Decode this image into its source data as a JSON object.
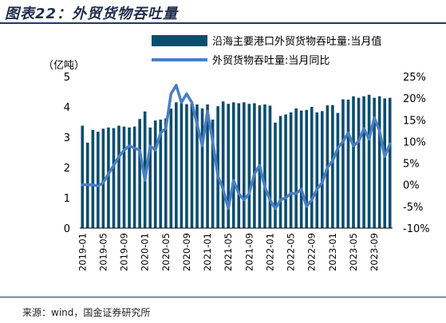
{
  "title": "图表22：外贸货物吞吐量",
  "source": "来源：wind，国金证券研究所",
  "colors": {
    "bar": "#0b4d6e",
    "line": "#4a7ec2",
    "title": "#1f2d4d",
    "rule": "#1b3a6b"
  },
  "chart_data": {
    "type": "bar+line",
    "left_axis_label": "（亿吨）",
    "left_ylim": [
      0,
      5
    ],
    "left_ticks": [
      "0",
      "1",
      "2",
      "3",
      "4",
      "5"
    ],
    "right_ylim": [
      -10,
      25
    ],
    "right_ticks": [
      "-10%",
      "-5%",
      "0%",
      "5%",
      "10%",
      "15%",
      "20%",
      "25%"
    ],
    "x_tick_labels": [
      "2019-01",
      "2019-05",
      "2019-09",
      "2020-01",
      "2020-05",
      "2020-09",
      "2021-01",
      "2021-05",
      "2021-09",
      "2022-01",
      "2022-05",
      "2022-09",
      "2023-01",
      "2023-05",
      "2023-09"
    ],
    "x": [
      "2019-01",
      "2019-02",
      "2019-03",
      "2019-04",
      "2019-05",
      "2019-06",
      "2019-07",
      "2019-08",
      "2019-09",
      "2019-10",
      "2019-11",
      "2019-12",
      "2020-01",
      "2020-02",
      "2020-03",
      "2020-04",
      "2020-05",
      "2020-06",
      "2020-07",
      "2020-08",
      "2020-09",
      "2020-10",
      "2020-11",
      "2020-12",
      "2021-01",
      "2021-02",
      "2021-03",
      "2021-04",
      "2021-05",
      "2021-06",
      "2021-07",
      "2021-08",
      "2021-09",
      "2021-10",
      "2021-11",
      "2021-12",
      "2022-01",
      "2022-02",
      "2022-03",
      "2022-04",
      "2022-05",
      "2022-06",
      "2022-07",
      "2022-08",
      "2022-09",
      "2022-10",
      "2022-11",
      "2022-12",
      "2023-01",
      "2023-02",
      "2023-03",
      "2023-04",
      "2023-05",
      "2023-06",
      "2023-07",
      "2023-08",
      "2023-09",
      "2023-10",
      "2023-11",
      "2023-12"
    ],
    "series": [
      {
        "name": "沿海主要港口外贸货物吞吐量:当月值",
        "type": "bar",
        "axis": "left",
        "values": [
          3.38,
          2.82,
          3.24,
          3.18,
          3.28,
          3.32,
          3.3,
          3.38,
          3.35,
          3.32,
          3.35,
          3.6,
          3.85,
          3.32,
          3.55,
          3.58,
          3.62,
          3.94,
          4.15,
          4.12,
          4.09,
          4.1,
          4.08,
          3.95,
          4.08,
          3.58,
          4.02,
          4.18,
          4.1,
          4.15,
          4.12,
          4.15,
          4.1,
          4.12,
          4.05,
          4.08,
          4.04,
          3.48,
          3.7,
          3.75,
          3.82,
          3.95,
          3.88,
          3.9,
          4.0,
          3.82,
          3.86,
          4.05,
          4.06,
          3.8,
          4.25,
          4.24,
          4.35,
          4.3,
          4.35,
          4.4,
          4.3,
          4.35,
          4.28,
          4.3
        ]
      },
      {
        "name": "外贸货物吞吐量:当月同比",
        "type": "line",
        "axis": "right",
        "values": [
          0.0,
          0.0,
          0.0,
          -0.3,
          0.5,
          2.5,
          4.5,
          6.5,
          8.0,
          9.0,
          8.5,
          8.0,
          1.0,
          9.0,
          8.0,
          12.0,
          13.0,
          21.0,
          23.0,
          19.0,
          21.0,
          19.0,
          14.0,
          9.0,
          17.0,
          10.0,
          2.0,
          -1.0,
          -5.5,
          1.0,
          -2.0,
          -3.5,
          -2.0,
          2.5,
          4.5,
          -0.5,
          -3.5,
          -5.5,
          -3.5,
          -3.0,
          -2.0,
          -2.0,
          -1.0,
          -5.0,
          -3.5,
          -1.0,
          0.5,
          4.0,
          5.5,
          8.5,
          10.0,
          12.0,
          9.0,
          10.0,
          13.0,
          10.5,
          15.5,
          12.5,
          6.5,
          9.5
        ]
      }
    ],
    "legend_placement": "top"
  }
}
